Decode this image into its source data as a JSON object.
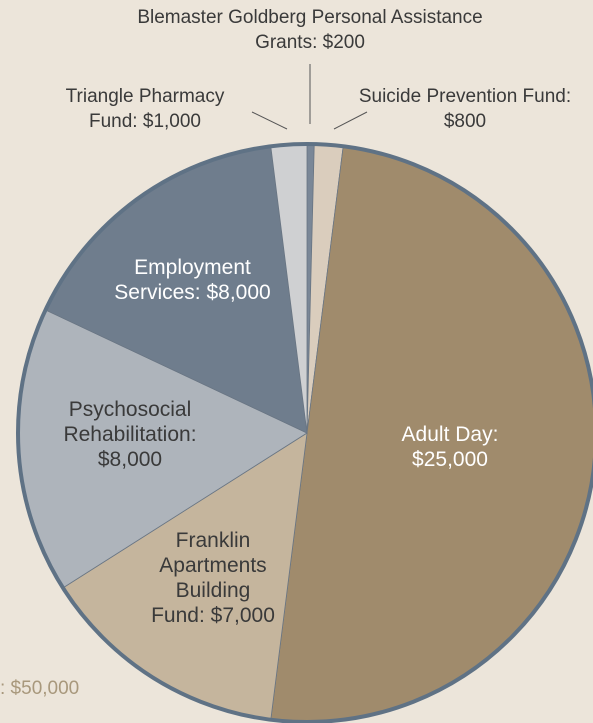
{
  "chart_data": {
    "type": "pie",
    "categories": [
      "Blemaster Goldberg Personal Assistance Grants:",
      "Suicide Prevention Fund:",
      "Adult Day:",
      "Franklin Apartments Building Fund:",
      "Psychosocial Rehabilitation:",
      "Employment Services:",
      "Triangle Pharmacy Fund:"
    ],
    "values": [
      200,
      800,
      25000,
      7000,
      8000,
      8000,
      1000
    ],
    "value_labels": [
      "$200",
      "$800",
      "$25,000",
      "$7,000",
      "$8,000",
      "$8,000",
      "$1,000"
    ],
    "colors": [
      "#7a8797",
      "#dacdbd",
      "#a08b6c",
      "#c5b59d",
      "#aeb4bb",
      "#6f7d8d",
      "#cfd0d2"
    ],
    "annotation": ": $50,000"
  }
}
